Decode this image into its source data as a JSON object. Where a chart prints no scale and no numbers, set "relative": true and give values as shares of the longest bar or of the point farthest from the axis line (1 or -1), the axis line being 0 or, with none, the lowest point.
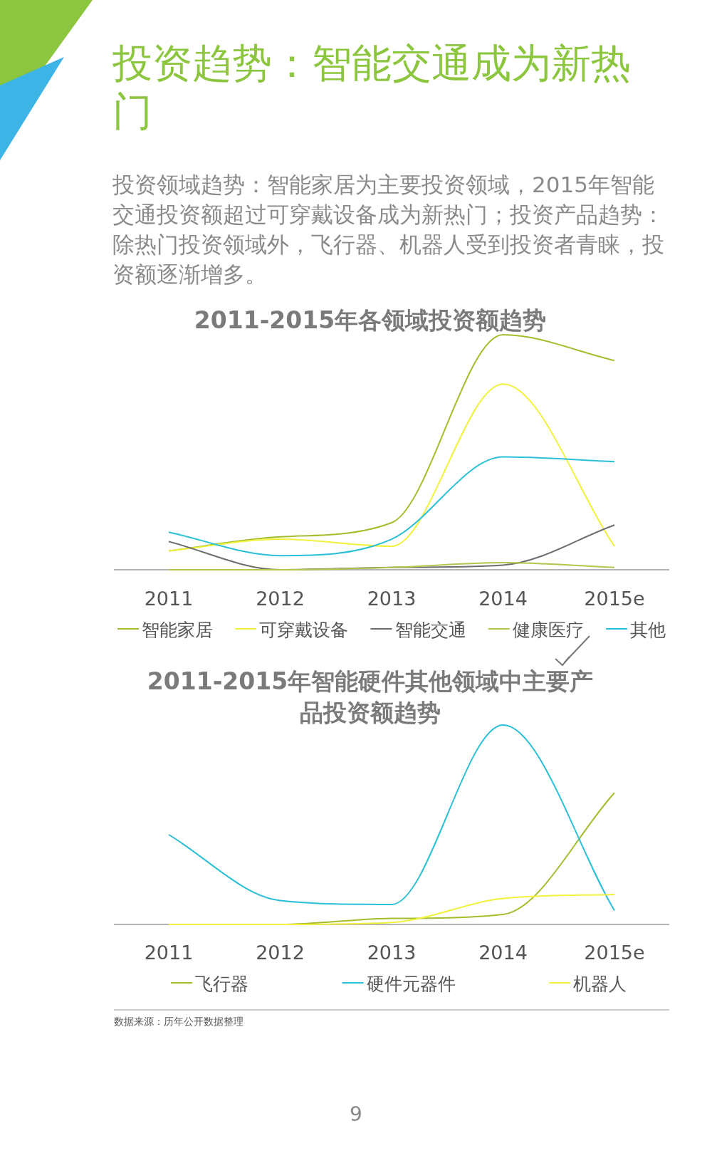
{
  "chart_data": [
    {
      "type": "line",
      "title": "2011-2015年各领域投资额趋势",
      "categories": [
        "2011",
        "2012",
        "2013",
        "2014",
        "2015e"
      ],
      "relative": true,
      "legend": "bottom",
      "annotations": [
        "投资趋势：智能交通成为新热门",
        "投资领域趋势：智能家居为主要投资领域，2015年智能交通投资额超过可穿戴设备成为新热门；投资产品趋势：除热门投资领域外，飞行器、机器人受到投资者青睐，投资额逐渐增多。"
      ],
      "series": [
        {
          "name": "智能家居",
          "color": "#a3bd2c",
          "values": [
            0.08,
            0.14,
            0.2,
            1,
            0.89
          ]
        },
        {
          "name": "可穿戴设备",
          "color": "#f0f23c",
          "values": [
            0.08,
            0.13,
            0.1,
            0.79,
            0.1
          ]
        },
        {
          "name": "智能交通",
          "color": "#6d6d6d",
          "values": [
            0.12,
            0,
            0.01,
            0.02,
            0.19
          ]
        },
        {
          "name": "健康医疗",
          "color": "#b3c64a",
          "values": [
            0,
            0,
            0.01,
            0.03,
            0.01
          ]
        },
        {
          "name": "其他",
          "color": "#2bbfd6",
          "values": [
            0.16,
            0.06,
            0.13,
            0.48,
            0.46
          ]
        }
      ]
    },
    {
      "type": "line",
      "title": "2011-2015年智能硬件其他领域中主要产品投资额趋势",
      "categories": [
        "2011",
        "2012",
        "2013",
        "2014",
        "2015e"
      ],
      "relative": true,
      "legend": "bottom",
      "annotations": [
        "数据来源：历年公开数据整理",
        "9"
      ],
      "series": [
        {
          "name": "飞行器",
          "color": "#a3bd2c",
          "values": [
            0,
            0,
            0.03,
            0.05,
            0.66
          ]
        },
        {
          "name": "硬件元器件",
          "color": "#2bbfd6",
          "values": [
            0.45,
            0.12,
            0.1,
            1,
            0.07
          ]
        },
        {
          "name": "机器人",
          "color": "#f0f23c",
          "values": [
            0,
            0,
            0.01,
            0.13,
            0.15
          ]
        }
      ]
    }
  ]
}
